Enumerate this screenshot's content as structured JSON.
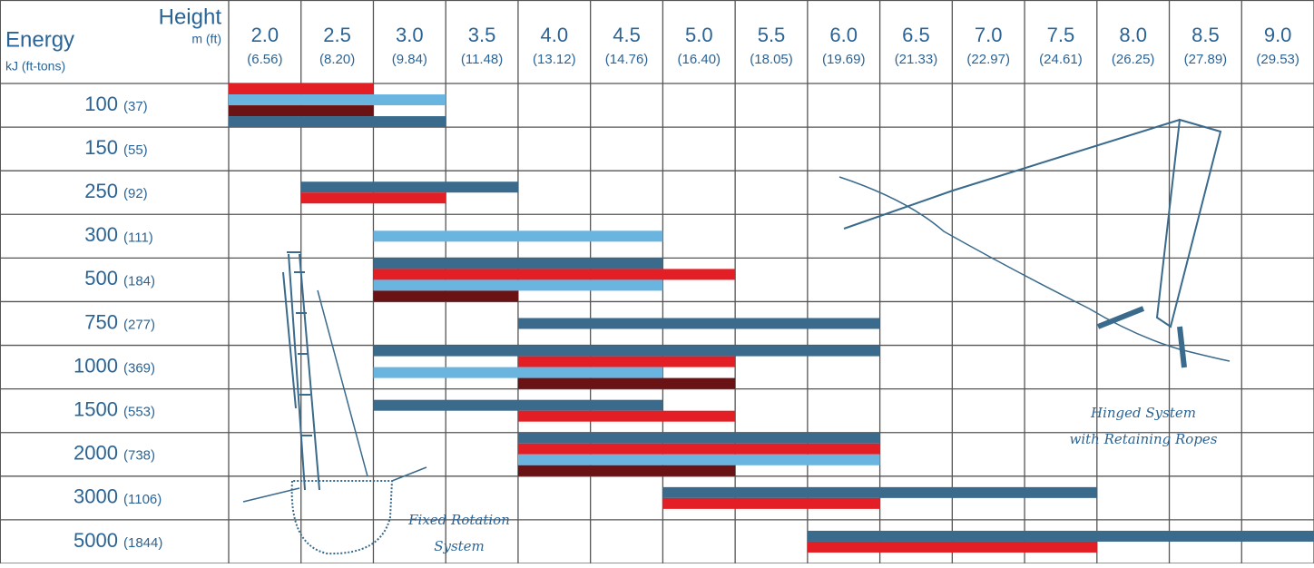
{
  "chart_data": {
    "type": "range-bar",
    "corner_labels": {
      "height": "Height",
      "height_unit": "m (ft)",
      "energy": "Energy",
      "energy_unit": "kJ (ft-tons)"
    },
    "height_columns": [
      {
        "value": 2.0,
        "label": "2.0",
        "ft": "(6.56)"
      },
      {
        "value": 2.5,
        "label": "2.5",
        "ft": "(8.20)"
      },
      {
        "value": 3.0,
        "label": "3.0",
        "ft": "(9.84)"
      },
      {
        "value": 3.5,
        "label": "3.5",
        "ft": "(11.48)"
      },
      {
        "value": 4.0,
        "label": "4.0",
        "ft": "(13.12)"
      },
      {
        "value": 4.5,
        "label": "4.5",
        "ft": "(14.76)"
      },
      {
        "value": 5.0,
        "label": "5.0",
        "ft": "(16.40)"
      },
      {
        "value": 5.5,
        "label": "5.5",
        "ft": "(18.05)"
      },
      {
        "value": 6.0,
        "label": "6.0",
        "ft": "(19.69)"
      },
      {
        "value": 6.5,
        "label": "6.5",
        "ft": "(21.33)"
      },
      {
        "value": 7.0,
        "label": "7.0",
        "ft": "(22.97)"
      },
      {
        "value": 7.5,
        "label": "7.5",
        "ft": "(24.61)"
      },
      {
        "value": 8.0,
        "label": "8.0",
        "ft": "(26.25)"
      },
      {
        "value": 8.5,
        "label": "8.5",
        "ft": "(27.89)"
      },
      {
        "value": 9.0,
        "label": "9.0",
        "ft": "(29.53)"
      }
    ],
    "energy_rows": [
      {
        "label": "100",
        "ft": "(37)",
        "bars": [
          {
            "color": "#e31e24",
            "start": 2.0,
            "end": 2.5
          },
          {
            "color": "#6ab4e0",
            "start": 2.0,
            "end": 3.0
          },
          {
            "color": "#6b1214",
            "start": 2.0,
            "end": 2.5
          },
          {
            "color": "#3a6a8c",
            "start": 2.0,
            "end": 3.0
          }
        ]
      },
      {
        "label": "150",
        "ft": "(55)",
        "bars": []
      },
      {
        "label": "250",
        "ft": "(92)",
        "bars": [
          {
            "color": "#3a6a8c",
            "start": 2.5,
            "end": 3.5
          },
          {
            "color": "#e31e24",
            "start": 2.5,
            "end": 3.0
          }
        ]
      },
      {
        "label": "300",
        "ft": "(111)",
        "bars": [
          {
            "color": "#6ab4e0",
            "start": 3.0,
            "end": 4.5
          }
        ]
      },
      {
        "label": "500",
        "ft": "(184)",
        "bars": [
          {
            "color": "#3a6a8c",
            "start": 3.0,
            "end": 4.5
          },
          {
            "color": "#e31e24",
            "start": 3.0,
            "end": 5.0
          },
          {
            "color": "#6ab4e0",
            "start": 3.0,
            "end": 4.5
          },
          {
            "color": "#6b1214",
            "start": 3.0,
            "end": 3.5
          }
        ]
      },
      {
        "label": "750",
        "ft": "(277)",
        "bars": [
          {
            "color": "#3a6a8c",
            "start": 4.0,
            "end": 6.0
          }
        ]
      },
      {
        "label": "1000",
        "ft": "(369)",
        "bars": [
          {
            "color": "#3a6a8c",
            "start": 3.0,
            "end": 6.0
          },
          {
            "color": "#e31e24",
            "start": 4.0,
            "end": 5.0
          },
          {
            "color": "#6ab4e0",
            "start": 3.0,
            "end": 4.5
          },
          {
            "color": "#6b1214",
            "start": 4.0,
            "end": 5.0
          }
        ]
      },
      {
        "label": "1500",
        "ft": "(553)",
        "bars": [
          {
            "color": "#3a6a8c",
            "start": 3.0,
            "end": 4.5
          },
          {
            "color": "#e31e24",
            "start": 4.0,
            "end": 5.0
          }
        ]
      },
      {
        "label": "2000",
        "ft": "(738)",
        "bars": [
          {
            "color": "#3a6a8c",
            "start": 4.0,
            "end": 6.0
          },
          {
            "color": "#e31e24",
            "start": 4.0,
            "end": 6.0
          },
          {
            "color": "#6ab4e0",
            "start": 4.0,
            "end": 6.0
          },
          {
            "color": "#6b1214",
            "start": 4.0,
            "end": 5.0
          }
        ]
      },
      {
        "label": "3000",
        "ft": "(1106)",
        "bars": [
          {
            "color": "#3a6a8c",
            "start": 5.0,
            "end": 7.5
          },
          {
            "color": "#e31e24",
            "start": 5.0,
            "end": 6.0
          }
        ]
      },
      {
        "label": "5000",
        "ft": "(1844)",
        "bars": [
          {
            "color": "#3a6a8c",
            "start": 6.0,
            "end": 9.0
          },
          {
            "color": "#e31e24",
            "start": 6.0,
            "end": 7.5
          }
        ]
      }
    ],
    "annotations": {
      "fixed": [
        "Fixed Rotation",
        "System"
      ],
      "hinged": [
        "Hinged System",
        "with Retaining Ropes"
      ]
    }
  }
}
